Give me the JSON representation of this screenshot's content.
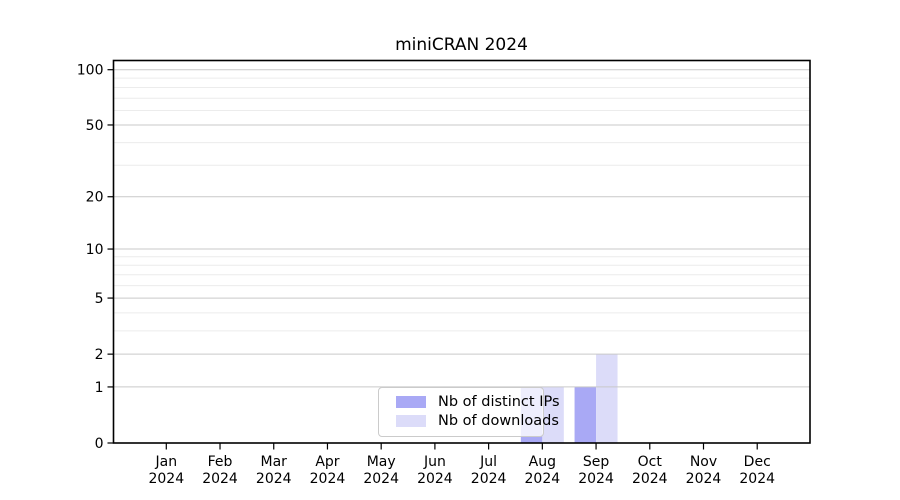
{
  "title": "miniCRAN 2024",
  "legend": {
    "items": [
      {
        "label": "Nb of distinct IPs",
        "color": "#a9a9f5"
      },
      {
        "label": "Nb of downloads",
        "color": "#dcdcf9"
      }
    ]
  },
  "chart_data": {
    "type": "bar",
    "title": "miniCRAN 2024",
    "categories": [
      "Jan",
      "Feb",
      "Mar",
      "Apr",
      "May",
      "Jun",
      "Jul",
      "Aug",
      "Sep",
      "Oct",
      "Nov",
      "Dec"
    ],
    "year": "2024",
    "series": [
      {
        "name": "Nb of distinct IPs",
        "color": "#a9a9f5",
        "values": [
          0,
          0,
          0,
          0,
          0,
          0,
          0,
          1,
          1,
          0,
          0,
          0
        ]
      },
      {
        "name": "Nb of downloads",
        "color": "#dcdcf9",
        "values": [
          0,
          0,
          0,
          0,
          0,
          0,
          0,
          1,
          2,
          0,
          0,
          0
        ]
      }
    ],
    "y_scale": "log1p",
    "y_ticks": [
      0,
      1,
      2,
      5,
      10,
      20,
      50,
      100
    ],
    "y_major_gridlines": [
      1,
      2,
      5,
      10,
      20,
      50,
      100
    ],
    "y_minor_gridlines": [
      3,
      4,
      6,
      7,
      8,
      9,
      30,
      40,
      60,
      70,
      80,
      90
    ],
    "ylim": [
      0,
      113
    ],
    "xlabel": "",
    "ylabel": "",
    "grid": "horizontal",
    "legend_position": "inside-bottom-center"
  }
}
